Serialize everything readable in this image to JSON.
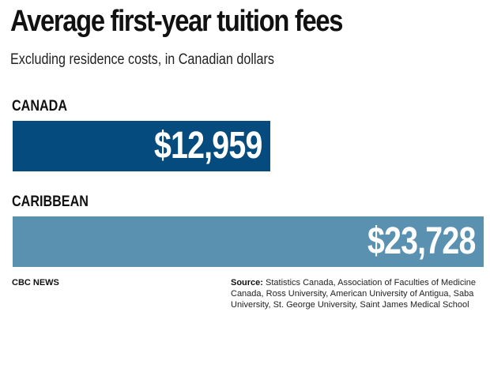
{
  "title": "Average first-year tuition fees",
  "subtitle": "Excluding residence costs, in Canadian dollars",
  "bars": [
    {
      "label": "CANADA",
      "value_text": "$12,959",
      "value": 12959,
      "color": "#064b7d"
    },
    {
      "label": "CARIBBEAN",
      "value_text": "$23,728",
      "value": 23728,
      "color": "#5a91b0"
    }
  ],
  "footer": {
    "credit": "CBC NEWS",
    "source_label": "Source:",
    "source_text": "Statistics Canada, Association of Faculties of Medicine Canada, Ross University, American University of Antigua, Saba University, St. George University, Saint James Medical School"
  },
  "chart_data": {
    "type": "bar",
    "orientation": "horizontal",
    "title": "Average first-year tuition fees",
    "subtitle": "Excluding residence costs, in Canadian dollars",
    "categories": [
      "CANADA",
      "CARIBBEAN"
    ],
    "values": [
      12959,
      23728
    ],
    "value_labels": [
      "$12,959",
      "$23,728"
    ],
    "colors": [
      "#064b7d",
      "#5a91b0"
    ],
    "xlabel": "",
    "ylabel": "",
    "grid": false,
    "legend": "none",
    "source": "Statistics Canada, Association of Faculties of Medicine Canada, Ross University, American University of Antigua, Saba University, St. George University, Saint James Medical School",
    "credit": "CBC NEWS"
  }
}
